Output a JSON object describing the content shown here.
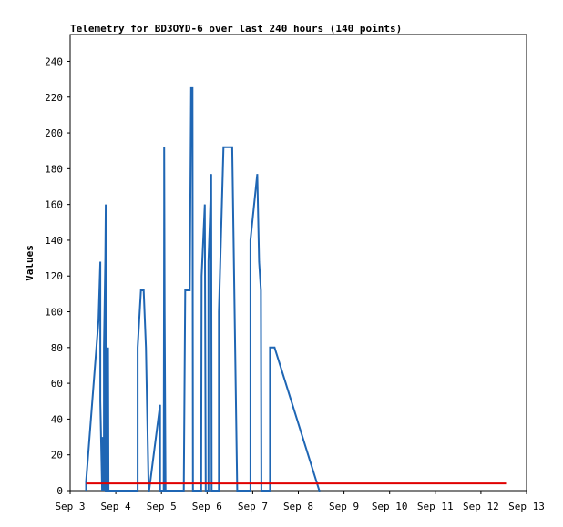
{
  "chart_data": {
    "type": "line",
    "title": "Telemetry for BD3OYD-6 over last 240 hours (140 points)",
    "xlabel": "",
    "ylabel": "Values",
    "x_tick_labels": [
      "Sep 3",
      "Sep 4",
      "Sep 5",
      "Sep 6",
      "Sep 7",
      "Sep 8",
      "Sep 9",
      "Sep 10",
      "Sep 11",
      "Sep 12",
      "Sep 13"
    ],
    "x_ticks": [
      3,
      4,
      5,
      6,
      7,
      8,
      9,
      10,
      11,
      12,
      13
    ],
    "xlim": [
      3,
      13
    ],
    "ylim": [
      0,
      255
    ],
    "y_ticks": [
      0,
      20,
      40,
      60,
      80,
      100,
      120,
      140,
      160,
      180,
      200,
      220,
      240
    ],
    "grid": false,
    "legend": "none",
    "series": [
      {
        "color": "#1f66b4",
        "points": [
          [
            3.35,
            0
          ],
          [
            3.35,
            5
          ],
          [
            3.62,
            95
          ],
          [
            3.66,
            128
          ],
          [
            3.66,
            50
          ],
          [
            3.7,
            0
          ],
          [
            3.7,
            30
          ],
          [
            3.74,
            0
          ],
          [
            3.74,
            80
          ],
          [
            3.77,
            130
          ],
          [
            3.78,
            160
          ],
          [
            3.78,
            0
          ],
          [
            3.83,
            0
          ],
          [
            3.83,
            80
          ],
          [
            3.84,
            0
          ],
          [
            4.48,
            0
          ],
          [
            4.48,
            80
          ],
          [
            4.55,
            112
          ],
          [
            4.61,
            112
          ],
          [
            4.66,
            80
          ],
          [
            4.72,
            0
          ],
          [
            4.73,
            0
          ],
          [
            4.97,
            48
          ],
          [
            4.97,
            0
          ],
          [
            5.05,
            0
          ],
          [
            5.06,
            160
          ],
          [
            5.06,
            192
          ],
          [
            5.07,
            100
          ],
          [
            5.09,
            0
          ],
          [
            5.49,
            0
          ],
          [
            5.52,
            112
          ],
          [
            5.62,
            112
          ],
          [
            5.65,
            225
          ],
          [
            5.68,
            225
          ],
          [
            5.69,
            0
          ],
          [
            5.87,
            0
          ],
          [
            5.88,
            120
          ],
          [
            5.95,
            160
          ],
          [
            5.97,
            0
          ],
          [
            6.03,
            0
          ],
          [
            6.03,
            128
          ],
          [
            6.06,
            150
          ],
          [
            6.09,
            177
          ],
          [
            6.1,
            0
          ],
          [
            6.26,
            0
          ],
          [
            6.26,
            100
          ],
          [
            6.36,
            192
          ],
          [
            6.55,
            192
          ],
          [
            6.66,
            0
          ],
          [
            6.66,
            0
          ],
          [
            6.95,
            0
          ],
          [
            6.95,
            140
          ],
          [
            7.1,
            177
          ],
          [
            7.14,
            128
          ],
          [
            7.18,
            112
          ],
          [
            7.19,
            0
          ],
          [
            7.32,
            0
          ],
          [
            7.33,
            0
          ],
          [
            7.38,
            0
          ],
          [
            7.38,
            80
          ],
          [
            7.48,
            80
          ],
          [
            8.46,
            0
          ],
          [
            8.48,
            0
          ]
        ]
      },
      {
        "color": "#e00000",
        "points": [
          [
            3.35,
            4
          ],
          [
            12.55,
            4
          ]
        ]
      }
    ]
  }
}
